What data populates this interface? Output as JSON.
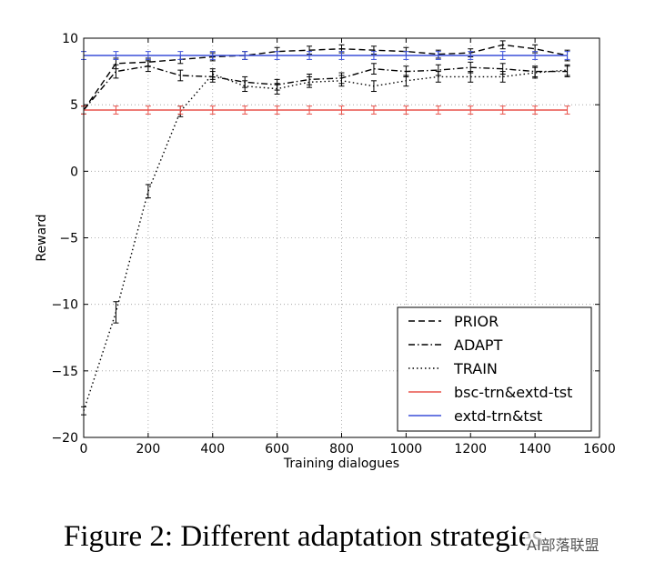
{
  "chart_data": {
    "type": "line",
    "title": "",
    "xlabel": "Training dialogues",
    "ylabel": "Reward",
    "xlim": [
      0,
      1600
    ],
    "ylim": [
      -20,
      10
    ],
    "xticks": [
      0,
      200,
      400,
      600,
      800,
      1000,
      1200,
      1400,
      1600
    ],
    "yticks": [
      -20,
      -15,
      -10,
      -5,
      0,
      5,
      10
    ],
    "xtick_labels": [
      "0",
      "200",
      "400",
      "600",
      "800",
      "1000",
      "1200",
      "1400",
      "1600"
    ],
    "ytick_labels": [
      "−20",
      "−15",
      "−10",
      "−5",
      "0",
      "5",
      "10"
    ],
    "grid": true,
    "legend_position": "lower-right",
    "series": [
      {
        "name": "PRIOR",
        "style": "dashed",
        "color": "#000000",
        "x": [
          0,
          100,
          200,
          300,
          400,
          500,
          600,
          700,
          800,
          900,
          1000,
          1100,
          1200,
          1300,
          1400,
          1500
        ],
        "y": [
          4.6,
          8.1,
          8.2,
          8.4,
          8.6,
          8.7,
          9.0,
          9.1,
          9.2,
          9.1,
          9.0,
          8.8,
          8.9,
          9.5,
          9.2,
          8.7
        ],
        "err": [
          0.3,
          0.4,
          0.3,
          0.3,
          0.3,
          0.3,
          0.3,
          0.3,
          0.3,
          0.3,
          0.3,
          0.3,
          0.3,
          0.3,
          0.3,
          0.4
        ]
      },
      {
        "name": "ADAPT",
        "style": "dashdot",
        "color": "#000000",
        "x": [
          0,
          100,
          200,
          300,
          400,
          500,
          600,
          700,
          800,
          900,
          1000,
          1100,
          1200,
          1300,
          1400,
          1500
        ],
        "y": [
          4.6,
          7.5,
          7.9,
          7.2,
          7.1,
          6.7,
          6.5,
          6.9,
          7.0,
          7.7,
          7.5,
          7.6,
          7.8,
          7.7,
          7.5,
          7.5
        ],
        "err": [
          0.3,
          0.5,
          0.4,
          0.4,
          0.4,
          0.4,
          0.4,
          0.4,
          0.4,
          0.4,
          0.4,
          0.4,
          0.4,
          0.4,
          0.4,
          0.4
        ]
      },
      {
        "name": "TRAIN",
        "style": "dotted",
        "color": "#000000",
        "x": [
          0,
          100,
          200,
          300,
          400,
          500,
          600,
          700,
          800,
          900,
          1000,
          1100,
          1200,
          1300,
          1400,
          1500
        ],
        "y": [
          -18.0,
          -10.6,
          -1.5,
          4.5,
          7.3,
          6.4,
          6.2,
          6.7,
          6.8,
          6.4,
          6.8,
          7.1,
          7.1,
          7.1,
          7.4,
          7.6
        ],
        "err": [
          0.3,
          0.8,
          0.5,
          0.4,
          0.4,
          0.4,
          0.4,
          0.4,
          0.4,
          0.4,
          0.4,
          0.4,
          0.4,
          0.4,
          0.4,
          0.4
        ]
      },
      {
        "name": "bsc-trn&extd-tst",
        "style": "solid",
        "color": "#e8524a",
        "x": [
          0,
          100,
          200,
          300,
          400,
          500,
          600,
          700,
          800,
          900,
          1000,
          1100,
          1200,
          1300,
          1400,
          1500
        ],
        "y": [
          4.6,
          4.6,
          4.6,
          4.6,
          4.6,
          4.6,
          4.6,
          4.6,
          4.6,
          4.6,
          4.6,
          4.6,
          4.6,
          4.6,
          4.6,
          4.6
        ],
        "err": [
          0.3,
          0.3,
          0.3,
          0.3,
          0.3,
          0.3,
          0.3,
          0.3,
          0.3,
          0.3,
          0.3,
          0.3,
          0.3,
          0.3,
          0.3,
          0.3
        ]
      },
      {
        "name": "extd-trn&tst",
        "style": "solid",
        "color": "#3a4fd8",
        "x": [
          0,
          100,
          200,
          300,
          400,
          500,
          600,
          700,
          800,
          900,
          1000,
          1100,
          1200,
          1300,
          1400,
          1500
        ],
        "y": [
          8.7,
          8.7,
          8.7,
          8.7,
          8.7,
          8.7,
          8.7,
          8.7,
          8.7,
          8.7,
          8.7,
          8.7,
          8.7,
          8.7,
          8.7,
          8.7
        ],
        "err": [
          0.3,
          0.3,
          0.3,
          0.3,
          0.3,
          0.3,
          0.3,
          0.3,
          0.3,
          0.3,
          0.3,
          0.3,
          0.3,
          0.3,
          0.3,
          0.3
        ]
      }
    ]
  },
  "caption": "Figure 2: Different adaptation strategies",
  "watermark": "AI部落联盟"
}
